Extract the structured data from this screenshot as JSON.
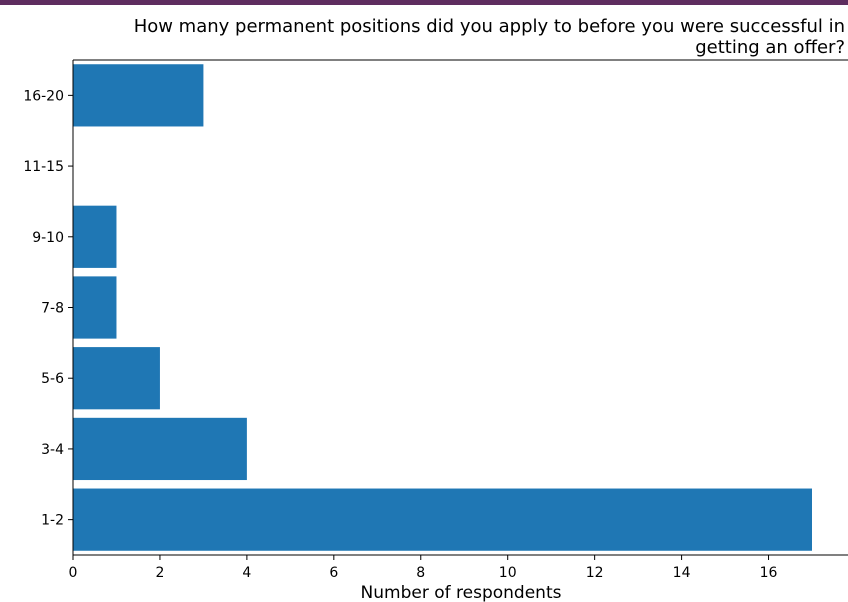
{
  "chart_data": {
    "type": "bar",
    "orientation": "horizontal",
    "title_lines": [
      "How many permanent positions did you apply to before you were successful in",
      "getting an offer?"
    ],
    "xlabel": "Number of respondents",
    "ylabel": "",
    "categories": [
      "1-2",
      "3-4",
      "5-6",
      "7-8",
      "9-10",
      "11-15",
      "16-20"
    ],
    "values": [
      17,
      4,
      2,
      1,
      1,
      0,
      3
    ],
    "xlim": [
      0,
      17.8
    ],
    "xticks": [
      0,
      2,
      4,
      6,
      8,
      10,
      12,
      14,
      16
    ],
    "grid": false,
    "bar_color": "#1f77b4"
  },
  "theme": {
    "header_strip_color": "#5e2d5f",
    "axis_color": "#000000"
  }
}
